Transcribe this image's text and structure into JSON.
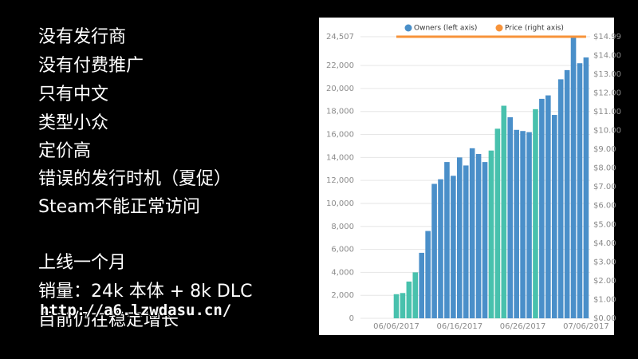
{
  "slide": {
    "lines": [
      "没有发行商",
      "没有付费推广",
      "只有中文",
      "类型小众",
      "定价高",
      "错误的发行时机（夏促）",
      "Steam不能正常访问",
      "上线一个月",
      "销量：24k 本体 + 8k DLC",
      "目前仍在稳定增长"
    ],
    "watermark": "http://a6.lzwdasu.cn/"
  },
  "chart_data": {
    "type": "bar",
    "categories": [
      "06/06/2017",
      null,
      null,
      null,
      null,
      null,
      null,
      null,
      null,
      null,
      "06/16/2017",
      null,
      null,
      null,
      null,
      null,
      null,
      null,
      null,
      null,
      "06/26/2017",
      null,
      null,
      null,
      null,
      null,
      null,
      null,
      null,
      null,
      "07/06/2017"
    ],
    "series": [
      {
        "name": "Owners (left axis)",
        "color": "#4a8fc9",
        "bar_colors": [
          "#48c1ad",
          "#48c1ad",
          "#48c1ad",
          "#48c1ad",
          "#4a8fc9",
          "#4a8fc9",
          "#4a8fc9",
          "#4a8fc9",
          "#4a8fc9",
          "#4a8fc9",
          "#4a8fc9",
          "#4a8fc9",
          "#4a8fc9",
          "#4a8fc9",
          "#4a8fc9",
          "#48c1ad",
          "#48c1ad",
          "#48c1ad",
          "#4a8fc9",
          "#4a8fc9",
          "#4a8fc9",
          "#4a8fc9",
          "#48c1ad",
          "#4a8fc9",
          "#4a8fc9",
          "#4a8fc9",
          "#4a8fc9",
          "#4a8fc9",
          "#4a8fc9",
          "#4a8fc9",
          "#4a8fc9"
        ],
        "values": [
          2100,
          2200,
          3200,
          4000,
          5700,
          7600,
          11700,
          12100,
          13600,
          12400,
          14000,
          13300,
          14800,
          14300,
          13600,
          14600,
          16500,
          18500,
          17500,
          16400,
          16300,
          16200,
          18200,
          19100,
          19400,
          17700,
          20800,
          21600,
          24500,
          22200,
          22700
        ]
      },
      {
        "name": "Price (right axis)",
        "color": "#f7933a",
        "axis": "y2",
        "values": [
          14.99,
          14.99,
          14.99,
          14.99,
          14.99,
          14.99,
          14.99,
          14.99,
          14.99,
          14.99,
          14.99,
          14.99,
          14.99,
          14.99,
          14.99,
          14.99,
          14.99,
          14.99,
          14.99,
          14.99,
          14.99,
          14.99,
          14.99,
          14.99,
          14.99,
          14.99,
          14.99,
          14.99,
          14.99,
          14.99,
          14.99
        ]
      }
    ],
    "ylim": [
      0,
      24507
    ],
    "yticks": [
      0,
      {
        "value": 2000,
        "label": "2,000"
      },
      {
        "value": 4000,
        "label": "4,000"
      },
      {
        "value": 6000,
        "label": "6,000"
      },
      {
        "value": 8000,
        "label": "8,000"
      },
      {
        "value": 10000,
        "label": "10,000"
      },
      {
        "value": 12000,
        "label": "12,000"
      },
      {
        "value": 14000,
        "label": "14,000"
      },
      {
        "value": 16000,
        "label": "16,000"
      },
      {
        "value": 18000,
        "label": "18,000"
      },
      {
        "value": 20000,
        "label": "20,000"
      },
      {
        "value": 22000,
        "label": "22,000"
      },
      {
        "value": 24507,
        "label": "24,507"
      }
    ],
    "y2lim": [
      0,
      14.99
    ],
    "y2ticks": [
      {
        "value": 0,
        "label": "$0.00"
      },
      {
        "value": 1,
        "label": "$1.00"
      },
      {
        "value": 2,
        "label": "$2.00"
      },
      {
        "value": 3,
        "label": "$3.00"
      },
      {
        "value": 4,
        "label": "$4.00"
      },
      {
        "value": 5,
        "label": "$5.00"
      },
      {
        "value": 6,
        "label": "$6.00"
      },
      {
        "value": 7,
        "label": "$7.00"
      },
      {
        "value": 8,
        "label": "$8.00"
      },
      {
        "value": 9,
        "label": "$9.00"
      },
      {
        "value": 10,
        "label": "$10.00"
      },
      {
        "value": 11,
        "label": "$11.00"
      },
      {
        "value": 12,
        "label": "$12.00"
      },
      {
        "value": 13,
        "label": "$13.00"
      },
      {
        "value": 14,
        "label": "$14.00"
      },
      {
        "value": 14.99,
        "label": "$14.99"
      }
    ],
    "grid": true
  }
}
